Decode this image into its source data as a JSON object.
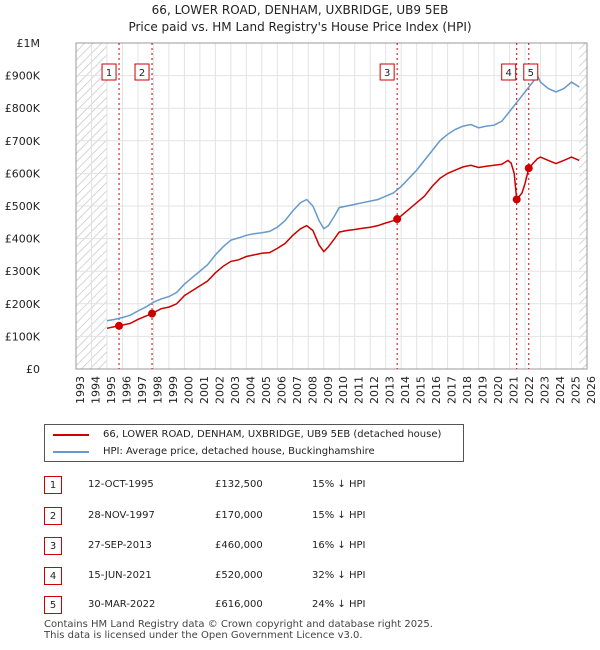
{
  "chart_data": {
    "type": "line",
    "title": "66, LOWER ROAD, DENHAM, UXBRIDGE, UB9 5EB",
    "subtitle": "Price paid vs. HM Land Registry's House Price Index (HPI)",
    "xlim": [
      1993,
      2026
    ],
    "ylim": [
      0,
      1000000
    ],
    "x_ticks": [
      "1993",
      "1994",
      "1995",
      "1996",
      "1997",
      "1998",
      "1999",
      "2000",
      "2001",
      "2002",
      "2003",
      "2004",
      "2005",
      "2006",
      "2007",
      "2008",
      "2009",
      "2010",
      "2011",
      "2012",
      "2013",
      "2014",
      "2015",
      "2016",
      "2017",
      "2018",
      "2019",
      "2020",
      "2021",
      "2022",
      "2023",
      "2024",
      "2025",
      "2026"
    ],
    "y_ticks": [
      {
        "value": 0,
        "label": "£0"
      },
      {
        "value": 100000,
        "label": "£100K"
      },
      {
        "value": 200000,
        "label": "£200K"
      },
      {
        "value": 300000,
        "label": "£300K"
      },
      {
        "value": 400000,
        "label": "£400K"
      },
      {
        "value": 500000,
        "label": "£500K"
      },
      {
        "value": 600000,
        "label": "£600K"
      },
      {
        "value": 700000,
        "label": "£700K"
      },
      {
        "value": 800000,
        "label": "£800K"
      },
      {
        "value": 900000,
        "label": "£900K"
      },
      {
        "value": 1000000,
        "label": "£1M"
      }
    ],
    "hatch_ranges": [
      [
        1993,
        1995.0
      ],
      [
        2025.5,
        2026
      ]
    ],
    "series": [
      {
        "name": "66, LOWER ROAD, DENHAM, UXBRIDGE, UB9 5EB (detached house)",
        "color": "#cc0000",
        "points": [
          [
            1995.0,
            125000
          ],
          [
            1995.5,
            130000
          ],
          [
            1995.78,
            132500
          ],
          [
            1996.5,
            140000
          ],
          [
            1997.0,
            152000
          ],
          [
            1997.9,
            170000
          ],
          [
            1998.5,
            185000
          ],
          [
            1999.0,
            190000
          ],
          [
            1999.5,
            200000
          ],
          [
            2000.0,
            225000
          ],
          [
            2000.5,
            240000
          ],
          [
            2001.0,
            255000
          ],
          [
            2001.5,
            270000
          ],
          [
            2002.0,
            295000
          ],
          [
            2002.5,
            315000
          ],
          [
            2003.0,
            330000
          ],
          [
            2003.5,
            335000
          ],
          [
            2004.0,
            345000
          ],
          [
            2004.5,
            350000
          ],
          [
            2005.0,
            355000
          ],
          [
            2005.5,
            357000
          ],
          [
            2006.0,
            370000
          ],
          [
            2006.5,
            385000
          ],
          [
            2007.0,
            410000
          ],
          [
            2007.5,
            430000
          ],
          [
            2007.9,
            440000
          ],
          [
            2008.3,
            425000
          ],
          [
            2008.7,
            380000
          ],
          [
            2009.0,
            360000
          ],
          [
            2009.3,
            375000
          ],
          [
            2009.7,
            400000
          ],
          [
            2010.0,
            420000
          ],
          [
            2010.5,
            425000
          ],
          [
            2011.0,
            428000
          ],
          [
            2011.5,
            432000
          ],
          [
            2012.0,
            435000
          ],
          [
            2012.5,
            440000
          ],
          [
            2013.0,
            448000
          ],
          [
            2013.5,
            455000
          ],
          [
            2013.74,
            460000
          ],
          [
            2014.0,
            470000
          ],
          [
            2014.5,
            490000
          ],
          [
            2015.0,
            510000
          ],
          [
            2015.5,
            530000
          ],
          [
            2016.0,
            560000
          ],
          [
            2016.5,
            585000
          ],
          [
            2017.0,
            600000
          ],
          [
            2017.5,
            610000
          ],
          [
            2018.0,
            620000
          ],
          [
            2018.5,
            625000
          ],
          [
            2019.0,
            618000
          ],
          [
            2019.5,
            622000
          ],
          [
            2020.0,
            625000
          ],
          [
            2020.5,
            628000
          ],
          [
            2020.9,
            640000
          ],
          [
            2021.1,
            632000
          ],
          [
            2021.3,
            600000
          ],
          [
            2021.46,
            520000
          ],
          [
            2021.8,
            540000
          ],
          [
            2022.0,
            570000
          ],
          [
            2022.24,
            616000
          ],
          [
            2022.5,
            630000
          ],
          [
            2022.8,
            645000
          ],
          [
            2023.0,
            650000
          ],
          [
            2023.5,
            640000
          ],
          [
            2024.0,
            630000
          ],
          [
            2024.5,
            640000
          ],
          [
            2025.0,
            650000
          ],
          [
            2025.5,
            640000
          ]
        ]
      },
      {
        "name": "HPI: Average price, detached house, Buckinghamshire",
        "color": "#6699cc",
        "points": [
          [
            1995.0,
            148000
          ],
          [
            1995.5,
            152000
          ],
          [
            1996.0,
            158000
          ],
          [
            1996.5,
            165000
          ],
          [
            1997.0,
            178000
          ],
          [
            1997.5,
            190000
          ],
          [
            1998.0,
            205000
          ],
          [
            1998.5,
            215000
          ],
          [
            1999.0,
            222000
          ],
          [
            1999.5,
            235000
          ],
          [
            2000.0,
            260000
          ],
          [
            2000.5,
            280000
          ],
          [
            2001.0,
            300000
          ],
          [
            2001.5,
            320000
          ],
          [
            2002.0,
            350000
          ],
          [
            2002.5,
            375000
          ],
          [
            2003.0,
            395000
          ],
          [
            2003.5,
            402000
          ],
          [
            2004.0,
            410000
          ],
          [
            2004.5,
            415000
          ],
          [
            2005.0,
            418000
          ],
          [
            2005.5,
            422000
          ],
          [
            2006.0,
            435000
          ],
          [
            2006.5,
            455000
          ],
          [
            2007.0,
            485000
          ],
          [
            2007.5,
            510000
          ],
          [
            2007.9,
            520000
          ],
          [
            2008.3,
            500000
          ],
          [
            2008.7,
            455000
          ],
          [
            2009.0,
            430000
          ],
          [
            2009.3,
            440000
          ],
          [
            2009.7,
            470000
          ],
          [
            2010.0,
            495000
          ],
          [
            2010.5,
            500000
          ],
          [
            2011.0,
            505000
          ],
          [
            2011.5,
            510000
          ],
          [
            2012.0,
            515000
          ],
          [
            2012.5,
            520000
          ],
          [
            2013.0,
            530000
          ],
          [
            2013.5,
            540000
          ],
          [
            2014.0,
            560000
          ],
          [
            2014.5,
            585000
          ],
          [
            2015.0,
            610000
          ],
          [
            2015.5,
            640000
          ],
          [
            2016.0,
            670000
          ],
          [
            2016.5,
            700000
          ],
          [
            2017.0,
            720000
          ],
          [
            2017.5,
            735000
          ],
          [
            2018.0,
            745000
          ],
          [
            2018.5,
            750000
          ],
          [
            2019.0,
            740000
          ],
          [
            2019.5,
            745000
          ],
          [
            2020.0,
            748000
          ],
          [
            2020.5,
            760000
          ],
          [
            2021.0,
            790000
          ],
          [
            2021.5,
            820000
          ],
          [
            2022.0,
            850000
          ],
          [
            2022.5,
            880000
          ],
          [
            2022.8,
            900000
          ],
          [
            2023.0,
            880000
          ],
          [
            2023.5,
            860000
          ],
          [
            2024.0,
            850000
          ],
          [
            2024.5,
            860000
          ],
          [
            2025.0,
            880000
          ],
          [
            2025.5,
            865000
          ]
        ]
      }
    ],
    "sales": [
      {
        "label": "1",
        "x": 1995.78,
        "value": 132500
      },
      {
        "label": "2",
        "x": 1997.91,
        "value": 170000
      },
      {
        "label": "3",
        "x": 2013.74,
        "value": 460000
      },
      {
        "label": "4",
        "x": 2021.46,
        "value": 520000
      },
      {
        "label": "5",
        "x": 2022.24,
        "value": 616000
      }
    ]
  },
  "legend": {
    "items": [
      {
        "label": "66, LOWER ROAD, DENHAM, UXBRIDGE, UB9 5EB (detached house)",
        "color": "#cc0000"
      },
      {
        "label": "HPI: Average price, detached house, Buckinghamshire",
        "color": "#6699cc"
      }
    ]
  },
  "table": {
    "rows": [
      {
        "num": "1",
        "date": "12-OCT-1995",
        "price": "£132,500",
        "hpi": "15% ↓ HPI"
      },
      {
        "num": "2",
        "date": "28-NOV-1997",
        "price": "£170,000",
        "hpi": "15% ↓ HPI"
      },
      {
        "num": "3",
        "date": "27-SEP-2013",
        "price": "£460,000",
        "hpi": "16% ↓ HPI"
      },
      {
        "num": "4",
        "date": "15-JUN-2021",
        "price": "£520,000",
        "hpi": "32% ↓ HPI"
      },
      {
        "num": "5",
        "date": "30-MAR-2022",
        "price": "£616,000",
        "hpi": "24% ↓ HPI"
      }
    ]
  },
  "footer": {
    "line1": "Contains HM Land Registry data © Crown copyright and database right 2025.",
    "line2": "This data is licensed under the Open Government Licence v3.0."
  }
}
